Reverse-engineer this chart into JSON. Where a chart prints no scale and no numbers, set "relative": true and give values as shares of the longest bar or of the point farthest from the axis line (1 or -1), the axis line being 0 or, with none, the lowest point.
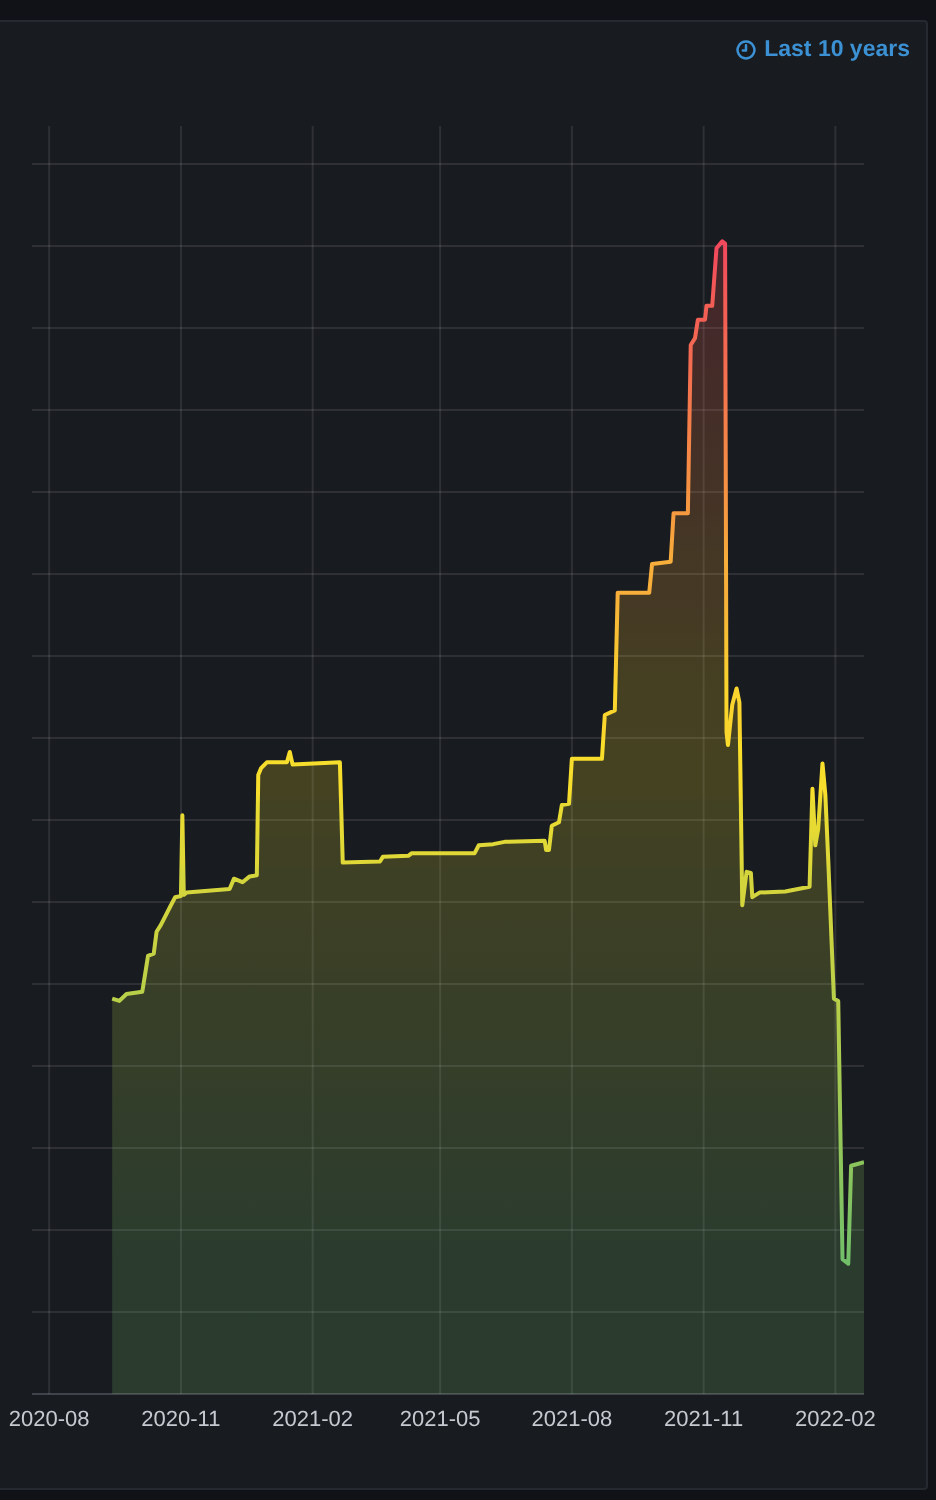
{
  "chart_data": {
    "type": "area",
    "relative": true,
    "x": [
      "2020-09-14",
      "2020-09-19",
      "2020-09-24",
      "2020-10-05",
      "2020-10-08",
      "2020-10-09",
      "2020-10-13",
      "2020-10-15",
      "2020-10-18",
      "2020-10-25",
      "2020-10-28",
      "2020-11-01",
      "2020-11-02",
      "2020-11-03",
      "2020-11-05",
      "2020-12-05",
      "2020-12-08",
      "2020-12-14",
      "2020-12-19",
      "2020-12-24",
      "2020-12-25",
      "2020-12-27",
      "2020-12-31",
      "2021-01-14",
      "2021-01-16",
      "2021-01-18",
      "2021-02-20",
      "2021-02-22",
      "2021-03-20",
      "2021-03-22",
      "2021-04-09",
      "2021-04-11",
      "2021-05-25",
      "2021-05-28",
      "2021-06-07",
      "2021-06-15",
      "2021-07-13",
      "2021-07-14",
      "2021-07-16",
      "2021-07-18",
      "2021-07-23",
      "2021-07-25",
      "2021-07-30",
      "2021-08-01",
      "2021-08-22",
      "2021-08-24",
      "2021-08-31",
      "2021-09-02",
      "2021-09-24",
      "2021-09-26",
      "2021-10-09",
      "2021-10-11",
      "2021-10-21",
      "2021-10-23",
      "2021-10-26",
      "2021-10-28",
      "2021-11-02",
      "2021-11-03",
      "2021-11-07",
      "2021-11-10",
      "2021-11-14",
      "2021-11-16",
      "2021-11-17",
      "2021-11-18",
      "2021-11-21",
      "2021-11-24",
      "2021-11-26",
      "2021-11-28",
      "2021-12-01",
      "2021-12-04",
      "2021-12-05",
      "2021-12-10",
      "2021-12-28",
      "2022-01-14",
      "2022-01-16",
      "2022-01-18",
      "2022-01-20",
      "2022-01-23",
      "2022-01-25",
      "2022-01-27",
      "2022-01-31",
      "2022-02-03",
      "2022-02-06",
      "2022-02-10",
      "2022-02-12",
      "2022-02-21"
    ],
    "values": [
      0.343,
      0.341,
      0.347,
      0.349,
      0.372,
      0.38,
      0.382,
      0.401,
      0.407,
      0.424,
      0.431,
      0.432,
      0.502,
      0.433,
      0.435,
      0.438,
      0.447,
      0.444,
      0.449,
      0.45,
      0.537,
      0.543,
      0.548,
      0.548,
      0.557,
      0.546,
      0.548,
      0.461,
      0.462,
      0.466,
      0.467,
      0.469,
      0.469,
      0.476,
      0.477,
      0.479,
      0.48,
      0.472,
      0.472,
      0.493,
      0.496,
      0.511,
      0.512,
      0.551,
      0.551,
      0.589,
      0.593,
      0.695,
      0.695,
      0.72,
      0.722,
      0.764,
      0.764,
      0.91,
      0.916,
      0.932,
      0.932,
      0.944,
      0.944,
      0.994,
      1.0,
      0.998,
      0.574,
      0.563,
      0.598,
      0.612,
      0.6,
      0.424,
      0.453,
      0.452,
      0.431,
      0.435,
      0.436,
      0.44,
      0.525,
      0.476,
      0.49,
      0.547,
      0.52,
      0.464,
      0.343,
      0.341,
      0.117,
      0.113,
      0.198,
      0.201
    ],
    "colors": [
      "#b8cf49",
      "#b8cf49",
      "#b8cf49",
      "#b8cf49",
      "#c3d144",
      "#c3d144",
      "#c3d144",
      "#ccd33f",
      "#ccd33f",
      "#d4d53c",
      "#d4d53c",
      "#d4d53c",
      "#e7da33",
      "#d4d53c",
      "#d4d53c",
      "#d4d53c",
      "#d4d53c",
      "#d4d53c",
      "#d4d53c",
      "#d4d53c",
      "#f7de2c",
      "#f7de2c",
      "#f7de2c",
      "#f7de2c",
      "#fade2a",
      "#f7de2c",
      "#f7de2c",
      "#dfd837",
      "#dfd837",
      "#dfd837",
      "#dfd837",
      "#dfd837",
      "#dfd837",
      "#dfd837",
      "#dfd837",
      "#dfd837",
      "#dfd837",
      "#dfd837",
      "#dfd837",
      "#e7da33",
      "#e7da33",
      "#e7da33",
      "#e7da33",
      "#f7de2c",
      "#f7de2c",
      "#f9d52d",
      "#f9d52d",
      "#f7ae3a",
      "#f7ae3a",
      "#f7ae3a",
      "#f7ae3a",
      "#f69940",
      "#f69940",
      "#f46752",
      "#f46752",
      "#f35e55",
      "#f35e55",
      "#f35e55",
      "#f35e55",
      "#f2495c",
      "#f2495c",
      "#f2495c",
      "#f9d52d",
      "#fade2a",
      "#f9d52d",
      "#f9d52d",
      "#f9d52d",
      "#d4d53c",
      "#d4d53c",
      "#d4d53c",
      "#d4d53c",
      "#d4d53c",
      "#d4d53c",
      "#d4d53c",
      "#f7de2c",
      "#dfd837",
      "#e7da33",
      "#f7de2c",
      "#f7de2c",
      "#dfd837",
      "#b8cf49",
      "#b8cf49",
      "#73bf69",
      "#73bf69",
      "#8dc55d",
      "#8dc55d"
    ],
    "xlim": [
      "2020-07-20",
      "2022-02-21"
    ],
    "xticks": [
      "2020-08",
      "2020-11",
      "2021-02",
      "2021-05",
      "2021-08",
      "2021-11",
      "2022-02"
    ],
    "grid": true,
    "annotations": [
      "Last 10 years"
    ]
  }
}
